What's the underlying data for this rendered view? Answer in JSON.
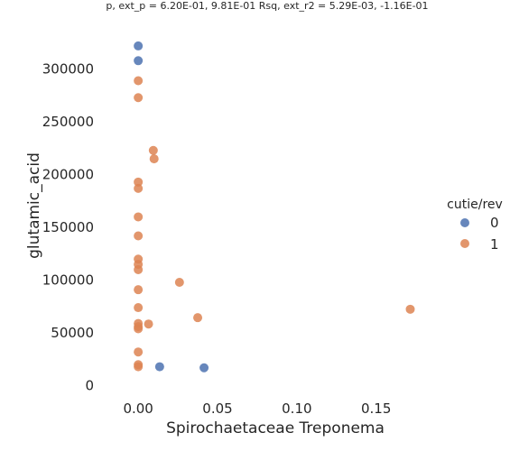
{
  "chart_data": {
    "type": "scatter",
    "title": "p, ext_p = 6.20E-01, 9.81E-01 Rsq, ext_r2 = 5.29E-03, -1.16E-01",
    "xlabel": "Spirochaetaceae Treponema",
    "ylabel": "glutamic_acid",
    "xlim": [
      -0.02,
      0.19
    ],
    "ylim": [
      -8000,
      345000
    ],
    "xticks": [
      0.0,
      0.05,
      0.1,
      0.15
    ],
    "xtick_labels": [
      "0.00",
      "0.05",
      "0.10",
      "0.15"
    ],
    "yticks": [
      0,
      50000,
      100000,
      150000,
      200000,
      250000,
      300000
    ],
    "ytick_labels": [
      "0",
      "50000",
      "100000",
      "150000",
      "200000",
      "250000",
      "300000"
    ],
    "grid": false,
    "legend": {
      "title": "cutie/rev",
      "placement": "right",
      "entries": [
        "0",
        "1"
      ]
    },
    "series": [
      {
        "name": "0",
        "color": "#4c72b0",
        "points": [
          {
            "x": 0.0,
            "y": 322000
          },
          {
            "x": 0.0,
            "y": 308000
          },
          {
            "x": 0.0135,
            "y": 18000
          },
          {
            "x": 0.0415,
            "y": 17000
          }
        ]
      },
      {
        "name": "1",
        "color": "#dd8452",
        "points": [
          {
            "x": 0.0,
            "y": 289000
          },
          {
            "x": 0.0,
            "y": 273000
          },
          {
            "x": 0.0095,
            "y": 223000
          },
          {
            "x": 0.01,
            "y": 215000
          },
          {
            "x": 0.0,
            "y": 193000
          },
          {
            "x": 0.0,
            "y": 187000
          },
          {
            "x": 0.0,
            "y": 160000
          },
          {
            "x": 0.0,
            "y": 142000
          },
          {
            "x": 0.0,
            "y": 120000
          },
          {
            "x": 0.0,
            "y": 115000
          },
          {
            "x": 0.0,
            "y": 110000
          },
          {
            "x": 0.026,
            "y": 98000
          },
          {
            "x": 0.0,
            "y": 91000
          },
          {
            "x": 0.0,
            "y": 74000
          },
          {
            "x": 0.0375,
            "y": 64500
          },
          {
            "x": 0.0065,
            "y": 58500
          },
          {
            "x": 0.0,
            "y": 59000
          },
          {
            "x": 0.0,
            "y": 56000
          },
          {
            "x": 0.0,
            "y": 54000
          },
          {
            "x": 0.1715,
            "y": 72500
          },
          {
            "x": 0.0,
            "y": 32000
          },
          {
            "x": 0.0,
            "y": 20000
          },
          {
            "x": 0.0,
            "y": 18000
          }
        ]
      }
    ]
  }
}
